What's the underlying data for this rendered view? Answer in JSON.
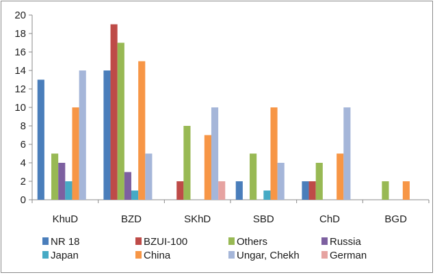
{
  "chart_data": {
    "type": "bar",
    "title": "",
    "xlabel": "",
    "ylabel": "",
    "ylim": [
      0,
      20
    ],
    "yticks": [
      0,
      2,
      4,
      6,
      8,
      10,
      12,
      14,
      16,
      18,
      20
    ],
    "grid": false,
    "legend_position": "bottom",
    "categories": [
      "KhuD",
      "BZD",
      "SKhD",
      "SBD",
      "ChD",
      "BGD"
    ],
    "series": [
      {
        "name": "NR 18",
        "color": "#4a7ebb",
        "values": [
          13,
          14,
          0,
          2,
          2,
          0
        ]
      },
      {
        "name": "BZUI-100",
        "color": "#be4b48",
        "values": [
          0,
          19,
          2,
          0,
          2,
          0
        ]
      },
      {
        "name": "Others",
        "color": "#98b954",
        "values": [
          5,
          17,
          8,
          5,
          4,
          2
        ]
      },
      {
        "name": "Russia",
        "color": "#7d60a0",
        "values": [
          4,
          3,
          0,
          0,
          0,
          0
        ]
      },
      {
        "name": "Japan",
        "color": "#46aac5",
        "values": [
          2,
          1,
          0,
          1,
          0,
          0
        ]
      },
      {
        "name": "China",
        "color": "#f79646",
        "values": [
          10,
          15,
          7,
          10,
          5,
          2
        ]
      },
      {
        "name": "Ungar, Chekh",
        "color": "#a5b6d9",
        "values": [
          14,
          5,
          10,
          4,
          10,
          0
        ]
      },
      {
        "name": "German",
        "color": "#e6a3a1",
        "values": [
          0,
          0,
          2,
          0,
          0,
          0
        ]
      }
    ]
  }
}
